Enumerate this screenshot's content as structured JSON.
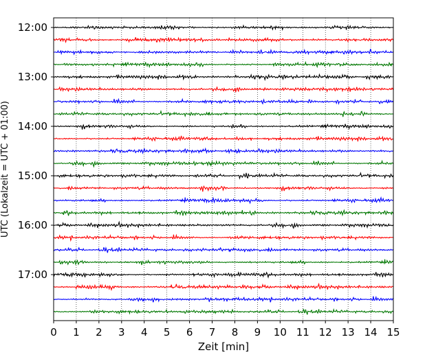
{
  "chart_data": {
    "type": "line",
    "title": "",
    "xlabel": "Zeit  [min]",
    "ylabel": "UTC (Lokalzeit = UTC + 01:00)",
    "xlim": [
      0,
      15
    ],
    "x_ticks": [
      "0",
      "1",
      "2",
      "3",
      "4",
      "5",
      "6",
      "7",
      "8",
      "9",
      "10",
      "11",
      "12",
      "13",
      "14",
      "15"
    ],
    "y_ticks": [
      "12:00",
      "13:00",
      "14:00",
      "15:00",
      "16:00",
      "17:00"
    ],
    "trace_start": "12:00",
    "trace_end": "17:45",
    "trace_interval_min": 15,
    "trace_colors": [
      "#000000",
      "#ff0000",
      "#0000ff",
      "#007700"
    ],
    "vertical_grid": true,
    "grid_style": "dotted",
    "legend": "none"
  }
}
